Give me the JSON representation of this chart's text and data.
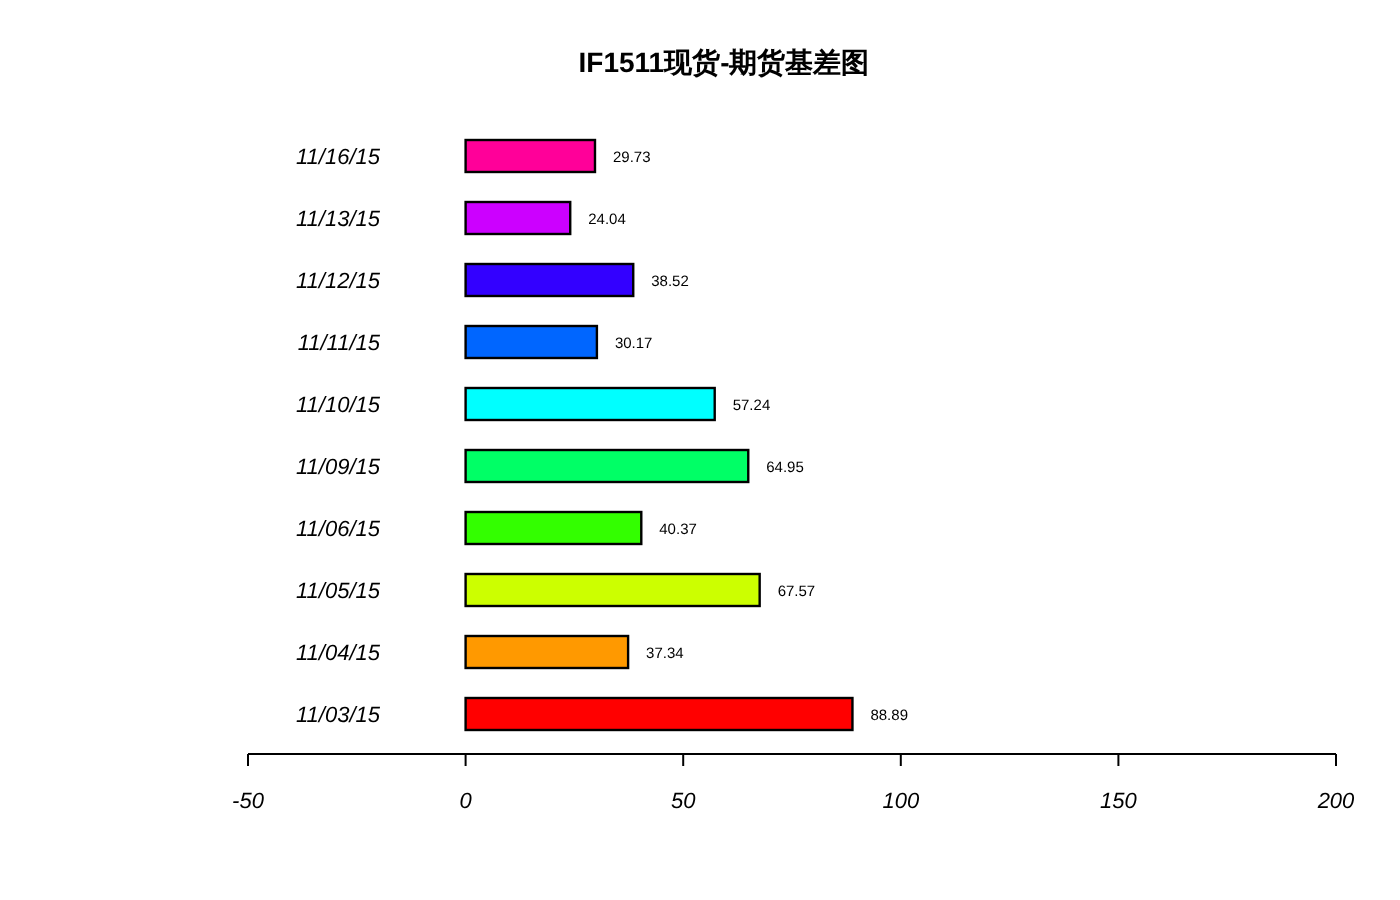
{
  "chart_data": {
    "type": "bar",
    "orientation": "horizontal",
    "title": "IF1511现货-期货基差图",
    "categories": [
      "11/16/15",
      "11/13/15",
      "11/12/15",
      "11/11/15",
      "11/10/15",
      "11/09/15",
      "11/06/15",
      "11/05/15",
      "11/04/15",
      "11/03/15"
    ],
    "values": [
      29.73,
      24.04,
      38.52,
      30.17,
      57.24,
      64.95,
      40.37,
      67.57,
      37.34,
      88.89
    ],
    "colors": [
      "#ff0099",
      "#cc00ff",
      "#3300ff",
      "#0066ff",
      "#00ffff",
      "#00ff66",
      "#33ff00",
      "#ccff00",
      "#ff9900",
      "#ff0000"
    ],
    "xlim": [
      -50,
      200
    ],
    "xticks": [
      -50,
      0,
      50,
      100,
      150,
      200
    ],
    "data_labels": true
  }
}
